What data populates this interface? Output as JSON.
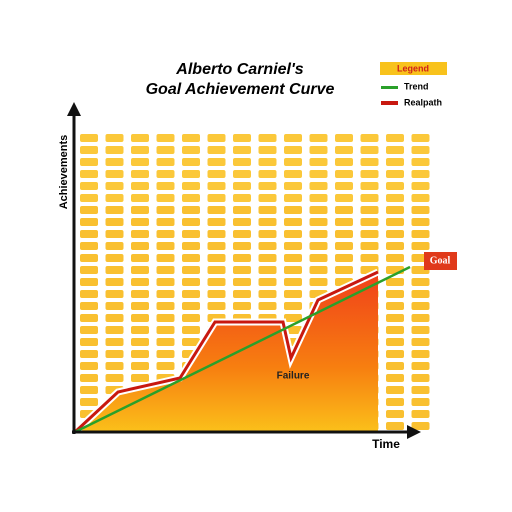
{
  "header": {
    "title_line1": "Alberto Carniel's",
    "title_line2": "Goal Achievement Curve"
  },
  "legend": {
    "title": "Legend",
    "items": [
      "Trend",
      "Realpath"
    ]
  },
  "axes": {
    "y_label": "Achievements",
    "x_label": "Time"
  },
  "annotations": {
    "goal": "Goal",
    "failure": "Failure"
  }
}
